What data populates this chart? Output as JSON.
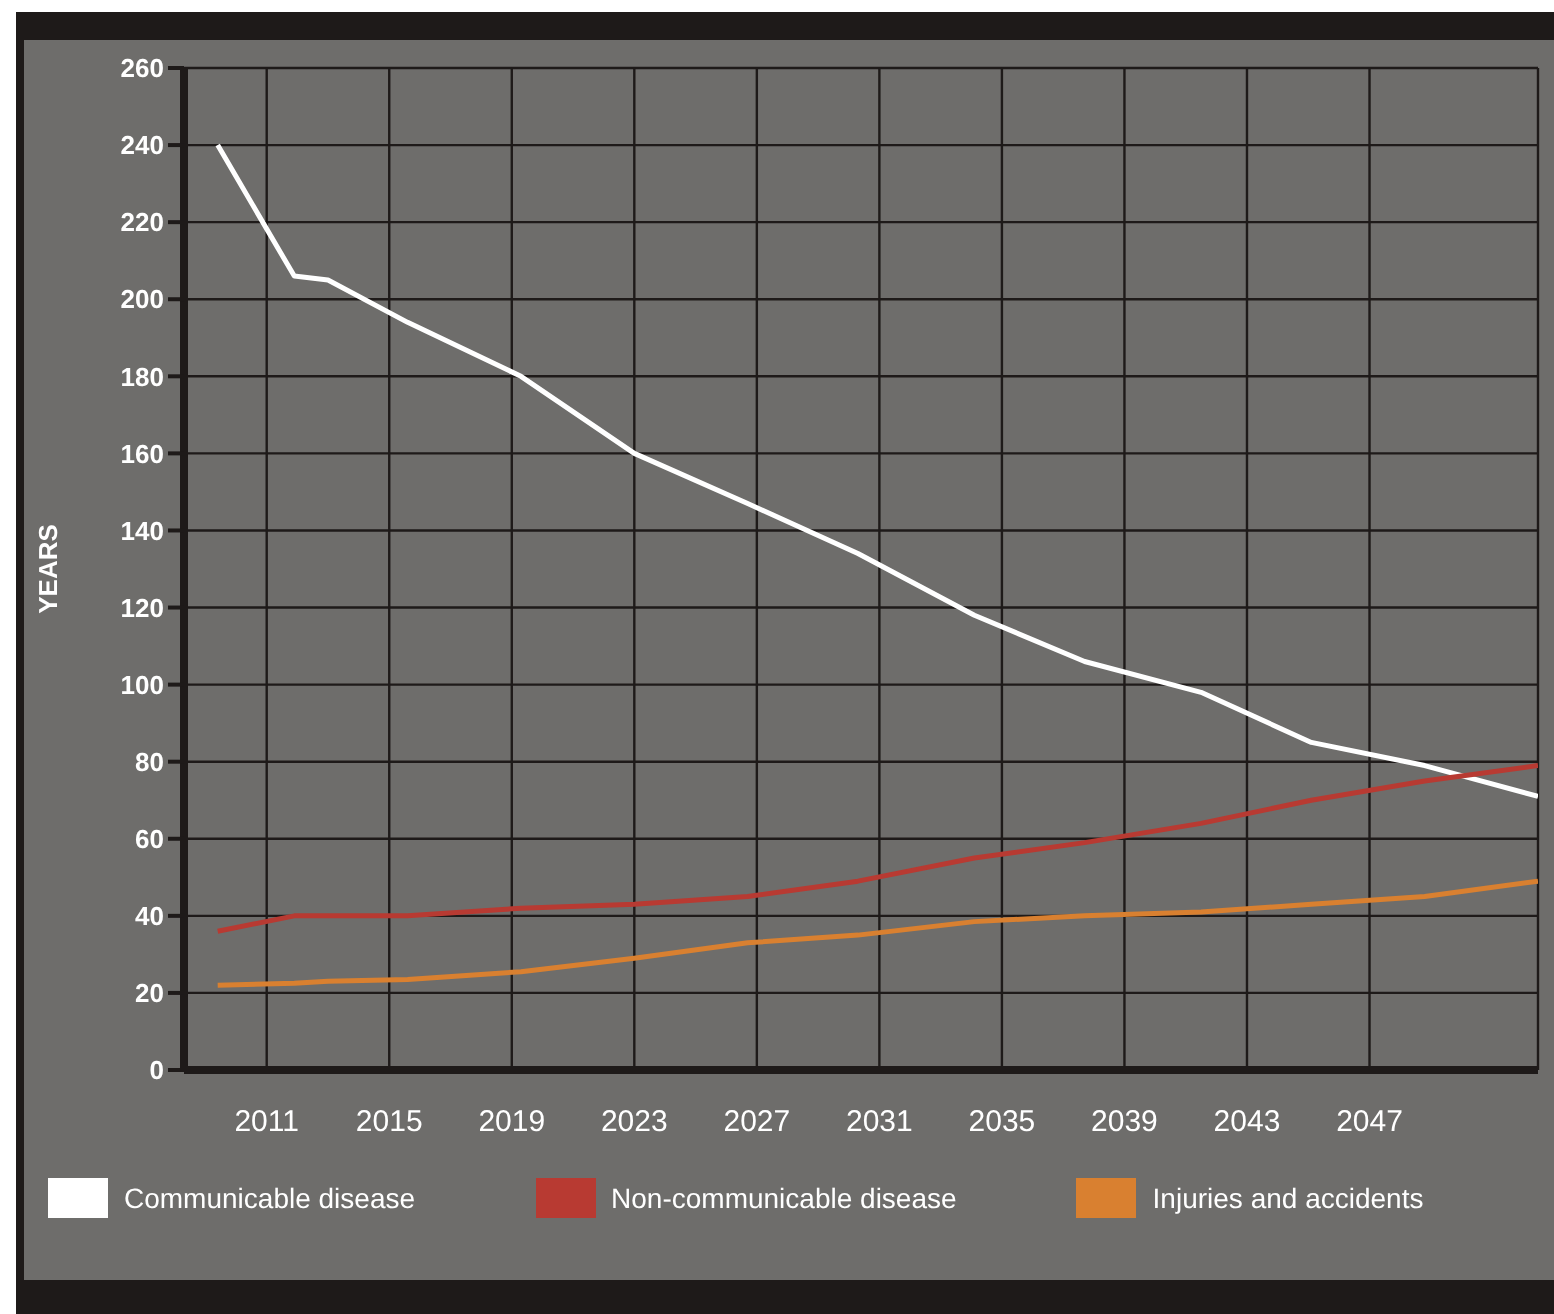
{
  "chart_data": {
    "type": "line",
    "ylabel": "YEARS",
    "x": [
      2009.4,
      2011.9,
      2013.0,
      2015.6,
      2019.3,
      2023.0,
      2026.7,
      2030.3,
      2034.1,
      2037.7,
      2041.5,
      2045.1,
      2048.8,
      2052.5
    ],
    "series": [
      {
        "name": "Communicable disease",
        "color": "#ffffff",
        "values": [
          240,
          206,
          205,
          194,
          180,
          160,
          147,
          134,
          118,
          106,
          98,
          85,
          79,
          71
        ]
      },
      {
        "name": "Non-communicable disease",
        "color": "#b83a32",
        "values": [
          36,
          40,
          40,
          40,
          42,
          43,
          45,
          49,
          55,
          59,
          64,
          70,
          75,
          79
        ]
      },
      {
        "name": "Injuries and accidents",
        "color": "#d98030",
        "values": [
          22,
          22.5,
          23,
          23.5,
          25.5,
          29,
          33,
          35,
          38.5,
          40,
          41,
          43,
          45,
          49
        ]
      }
    ],
    "xlim": [
      2008.3,
      2052.5
    ],
    "xticks": [
      2011,
      2015,
      2019,
      2023,
      2027,
      2031,
      2035,
      2039,
      2043,
      2047
    ],
    "ylim": [
      0,
      260
    ],
    "yticks": [
      0,
      20,
      40,
      60,
      80,
      100,
      120,
      140,
      160,
      180,
      200,
      220,
      240,
      260
    ],
    "grid": true,
    "legend": "bottom",
    "marker": "none",
    "line_style": "solid"
  }
}
